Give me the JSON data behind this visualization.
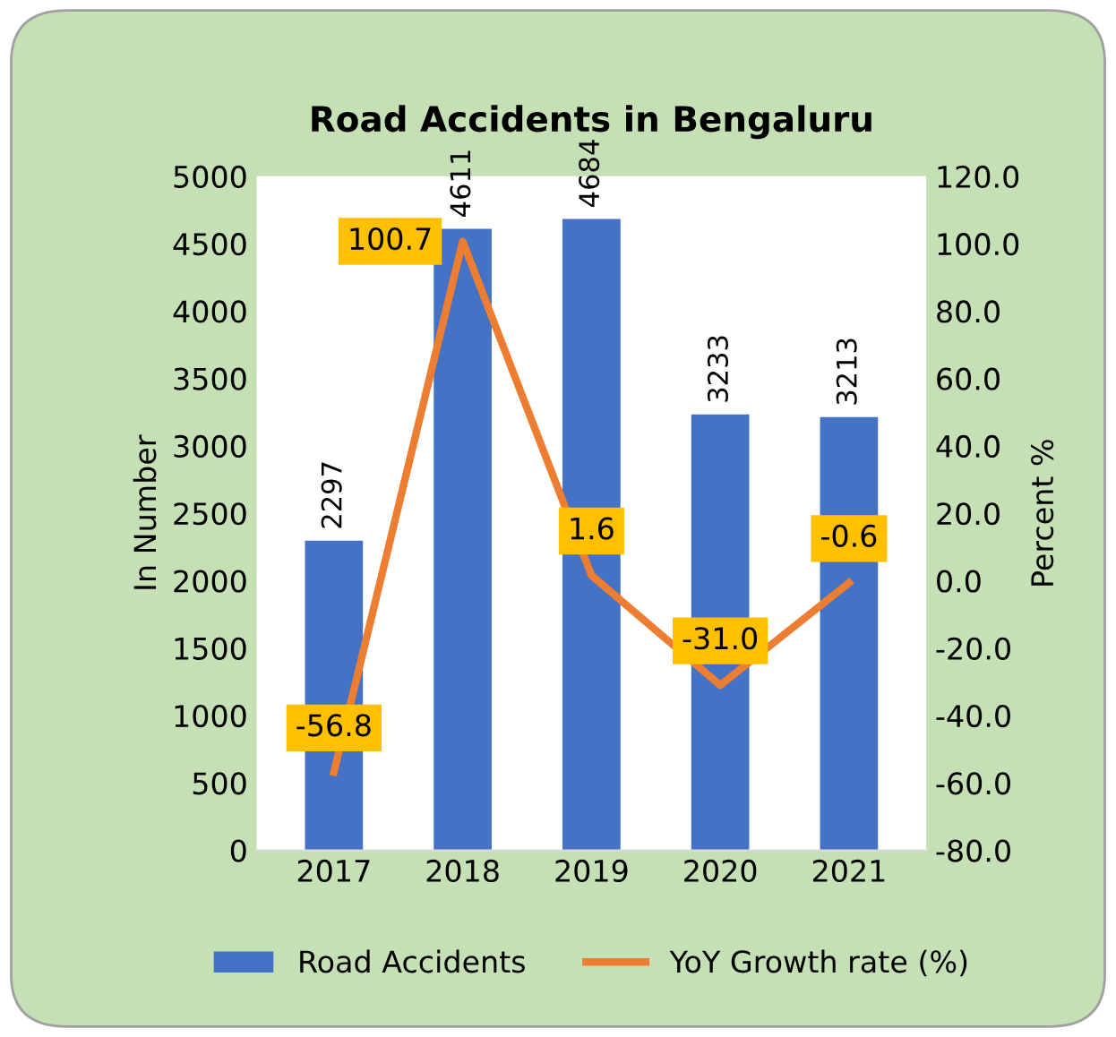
{
  "chart_data": {
    "type": "bar",
    "title": "Road Accidents in Bengaluru",
    "ylabel": "In Number",
    "y2label": "Percent %",
    "categories": [
      "2017",
      "2018",
      "2019",
      "2020",
      "2021"
    ],
    "series": [
      {
        "name": "Road Accidents",
        "color": "#4472c4",
        "values": [
          2297,
          4611,
          4684,
          3233,
          3213
        ],
        "value_labels": [
          "2297",
          "4611",
          "4684",
          "3233",
          "3213"
        ]
      },
      {
        "name": "YoY Growth rate (%)",
        "type": "line",
        "axis": "y2",
        "color": "#ed7d31",
        "values": [
          -56.8,
          100.7,
          1.6,
          -31.0,
          -0.6
        ],
        "value_labels": [
          "-56.8",
          "100.7",
          "1.6",
          "-31.0",
          "-0.6"
        ]
      }
    ],
    "ylim": [
      0,
      5000
    ],
    "yticks": [
      0,
      500,
      1000,
      1500,
      2000,
      2500,
      3000,
      3500,
      4000,
      4500,
      5000
    ],
    "y2lim": [
      -80,
      120
    ],
    "y2ticks": [
      {
        "value": -80,
        "label": "-80.0"
      },
      {
        "value": -60,
        "label": "-60.0"
      },
      {
        "value": -40,
        "label": "-40.0"
      },
      {
        "value": -20,
        "label": "-20.0"
      },
      {
        "value": 0,
        "label": "0.0"
      },
      {
        "value": 20,
        "label": "20.0"
      },
      {
        "value": 40,
        "label": "40.0"
      },
      {
        "value": 60,
        "label": "60.0"
      },
      {
        "value": 80,
        "label": "80.0"
      },
      {
        "value": 100,
        "label": "100.0"
      },
      {
        "value": 120,
        "label": "120.0"
      }
    ],
    "grid": false,
    "legend": "bottom",
    "marker": "none",
    "line_style": "solid"
  }
}
